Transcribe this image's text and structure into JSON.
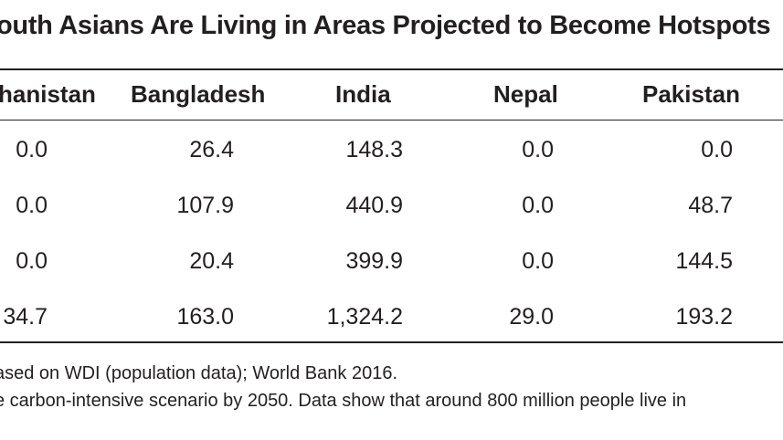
{
  "title": "outh Asians Are Living in Areas Projected to Become Hotspots",
  "table": {
    "headers": [
      "hanistan",
      "Bangladesh",
      "India",
      "Nepal",
      "Pakistan"
    ],
    "rows": [
      [
        "0.0",
        "26.4",
        "148.3",
        "0.0",
        "0.0"
      ],
      [
        "0.0",
        "107.9",
        "440.9",
        "0.0",
        "48.7"
      ],
      [
        "0.0",
        "20.4",
        "399.9",
        "0.0",
        "144.5"
      ],
      [
        "34.7",
        "163.0",
        "1,324.2",
        "29.0",
        "193.2"
      ]
    ]
  },
  "notes": {
    "source": "ased on WDI (population data); World Bank 2016.",
    "note": "e carbon-intensive scenario by 2050. Data show that around 800 million people live in"
  }
}
